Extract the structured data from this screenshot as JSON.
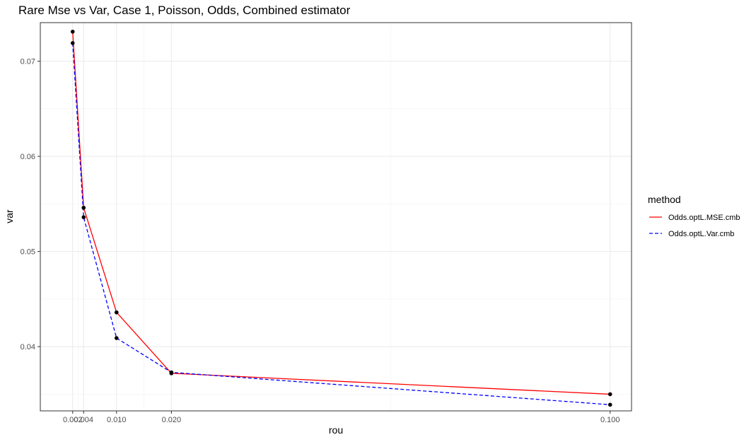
{
  "chart_data": {
    "type": "line",
    "title": "Rare Mse vs Var, Case 1, Poisson, Odds, Combined estimator",
    "xlabel": "rou",
    "ylabel": "var",
    "x": [
      0.002,
      0.004,
      0.01,
      0.02,
      0.1
    ],
    "x_tick_values": [
      0.002,
      0.004,
      0.01,
      0.02,
      0.1
    ],
    "x_tick_labels": [
      "0.002",
      "0.004",
      "0.010",
      "0.020",
      "0.100"
    ],
    "x_minor_grid": [
      0.003,
      0.015,
      0.06
    ],
    "y_tick_values": [
      0.04,
      0.05,
      0.06,
      0.07
    ],
    "y_tick_labels": [
      "0.04",
      "0.05",
      "0.06",
      "0.07"
    ],
    "xlim": [
      -0.0039,
      0.1039
    ],
    "ylim": [
      0.03325,
      0.07405
    ],
    "grid": true,
    "legend_title": "method",
    "legend_position": "right",
    "series": [
      {
        "name": "Odds.optL.MSE.cmb",
        "color": "#ff0000",
        "linetype": "solid",
        "values": [
          0.0731,
          0.0546,
          0.0436,
          0.0372,
          0.035
        ]
      },
      {
        "name": "Odds.optL.Var.cmb",
        "color": "#0000ff",
        "linetype": "dashed",
        "values": [
          0.0719,
          0.0536,
          0.0409,
          0.0373,
          0.0339
        ]
      }
    ]
  }
}
